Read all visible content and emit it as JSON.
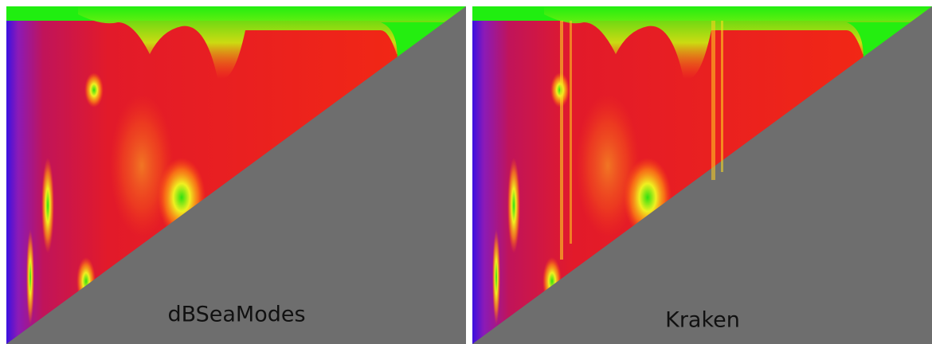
{
  "panels": [
    {
      "label": "dBSeaModes"
    },
    {
      "label": "Kraken"
    }
  ]
}
